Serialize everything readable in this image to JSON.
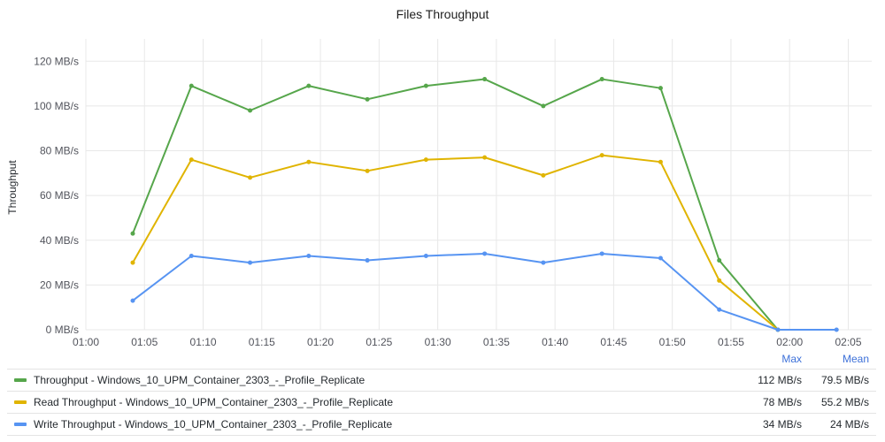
{
  "panel": {
    "title": "Files Throughput"
  },
  "chart_data": {
    "type": "line",
    "title": "Files Throughput",
    "xlabel": "",
    "ylabel": "Throughput",
    "y_unit": "MB/s",
    "ylim": [
      0,
      130
    ],
    "y_ticks": [
      "0 MB/s",
      "20 MB/s",
      "40 MB/s",
      "60 MB/s",
      "80 MB/s",
      "100 MB/s",
      "120 MB/s"
    ],
    "y_tick_values": [
      0,
      20,
      40,
      60,
      80,
      100,
      120
    ],
    "x_ticks": [
      "01:00",
      "01:05",
      "01:10",
      "01:15",
      "01:20",
      "01:25",
      "01:30",
      "01:35",
      "01:40",
      "01:45",
      "01:50",
      "01:55",
      "02:00",
      "02:05"
    ],
    "x_range": [
      "01:00",
      "02:07"
    ],
    "grid": true,
    "legend_placement": "bottom",
    "x": [
      "01:04",
      "01:09",
      "01:14",
      "01:19",
      "01:24",
      "01:29",
      "01:34",
      "01:39",
      "01:44",
      "01:49",
      "01:54",
      "01:59",
      "02:04"
    ],
    "series": [
      {
        "name": "Throughput - Windows_10_UPM_Container_2303_-_Profile_Replicate",
        "color": "#56a64b",
        "values": [
          43,
          109,
          98,
          109,
          103,
          109,
          112,
          100,
          112,
          108,
          31,
          0,
          null
        ],
        "max": "112 MB/s",
        "mean": "79.5 MB/s"
      },
      {
        "name": "Read Throughput - Windows_10_UPM_Container_2303_-_Profile_Replicate",
        "color": "#e0b400",
        "values": [
          30,
          76,
          68,
          75,
          71,
          76,
          77,
          69,
          78,
          75,
          22,
          0,
          null
        ],
        "max": "78 MB/s",
        "mean": "55.2 MB/s"
      },
      {
        "name": "Write Throughput - Windows_10_UPM_Container_2303_-_Profile_Replicate",
        "color": "#5794f2",
        "values": [
          13,
          33,
          30,
          33,
          31,
          33,
          34,
          30,
          34,
          32,
          9,
          0,
          0
        ],
        "max": "34 MB/s",
        "mean": "24 MB/s"
      }
    ]
  },
  "legend": {
    "max_header": "Max",
    "mean_header": "Mean"
  }
}
